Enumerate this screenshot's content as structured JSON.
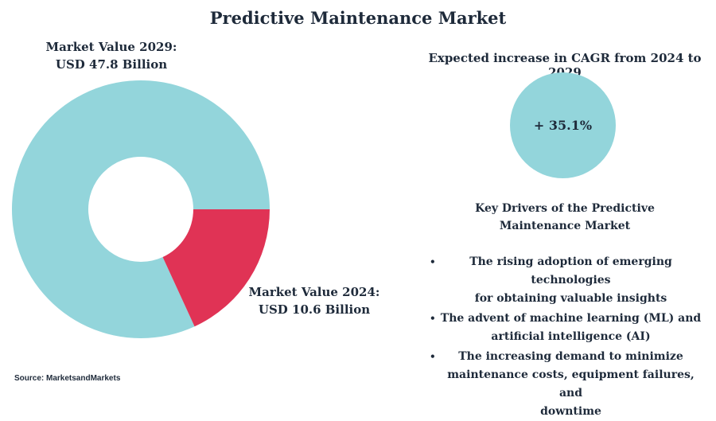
{
  "title": "Predictive Maintenance Market",
  "labels": {
    "value_2029_line1": "Market Value 2029:",
    "value_2029_line2": "USD 47.8 Billion",
    "value_2024_line1": "Market Value 2024:",
    "value_2024_line2": "USD 10.6 Billion"
  },
  "cagr": {
    "caption": "Expected increase in CAGR from 2024 to 2029",
    "value": "+ 35.1%"
  },
  "drivers": {
    "heading_line1": "Key Drivers of the Predictive",
    "heading_line2": "Maintenance Market",
    "items": [
      {
        "line1": "The rising adoption of emerging technologies",
        "line2": "for obtaining valuable insights"
      },
      {
        "line1": "The advent of machine learning (ML) and",
        "line2": "artificial intelligence (AI)"
      },
      {
        "line1": "The increasing demand to minimize",
        "line2": "maintenance costs, equipment failures, and",
        "line3": "downtime"
      }
    ]
  },
  "source": "Source: MarketsandMarkets",
  "colors": {
    "teal": "#93d5db",
    "red": "#e03355",
    "text": "#1e2a3a"
  },
  "chart_data": {
    "type": "pie",
    "title": "Predictive Maintenance Market",
    "categories": [
      "Market Value 2029",
      "Market Value 2024"
    ],
    "values": [
      47.8,
      10.6
    ],
    "unit": "USD Billion"
  }
}
